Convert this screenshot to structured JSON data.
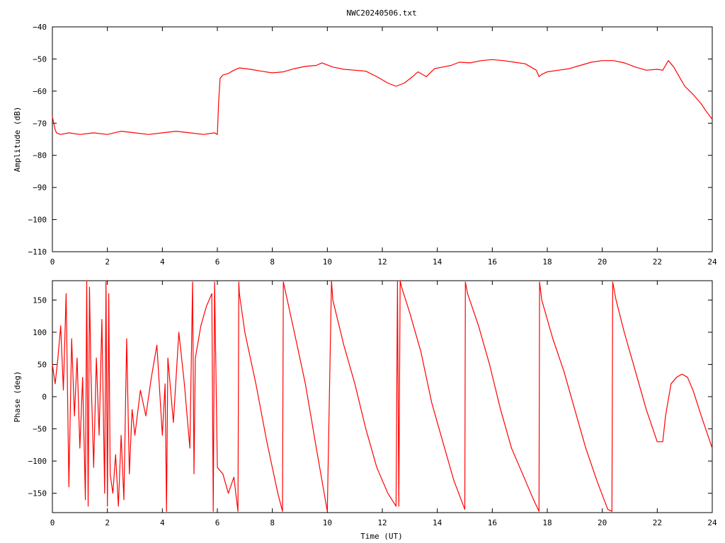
{
  "title": "NWC20240506.txt",
  "colors": {
    "series": "#ff0000",
    "axis": "#000000",
    "background": "#ffffff"
  },
  "chart_data": [
    {
      "type": "line",
      "id": "amplitude",
      "xlabel": "",
      "ylabel": "Amplitude (dB)",
      "xlim": [
        0,
        24
      ],
      "ylim": [
        -110,
        -40
      ],
      "xticks": [
        0,
        2,
        4,
        6,
        8,
        10,
        12,
        14,
        16,
        18,
        20,
        22,
        24
      ],
      "yticks": [
        -40,
        -50,
        -60,
        -70,
        -80,
        -90,
        -100,
        -110
      ],
      "grid": false,
      "legend": "none",
      "series": [
        {
          "x": [
            0,
            0.05,
            0.1,
            0.15,
            0.3,
            0.6,
            1,
            1.5,
            2,
            2.5,
            3,
            3.5,
            4,
            4.5,
            5,
            5.5,
            5.9,
            6.0,
            6.05,
            6.1,
            6.2,
            6.4,
            6.6,
            6.8,
            7.2,
            7.6,
            8.0,
            8.4,
            8.8,
            9.2,
            9.6,
            9.8,
            10.2,
            10.6,
            11.0,
            11.4,
            11.8,
            12.2,
            12.5,
            12.8,
            13.1,
            13.3,
            13.6,
            13.9,
            14.2,
            14.5,
            14.8,
            15.2,
            15.6,
            16.0,
            16.4,
            16.8,
            17.2,
            17.6,
            17.7,
            17.8,
            18.0,
            18.4,
            18.8,
            19.2,
            19.6,
            20.0,
            20.4,
            20.8,
            21.2,
            21.6,
            22.0,
            22.2,
            22.4,
            22.6,
            22.8,
            23.0,
            23.3,
            23.6,
            23.8,
            24.0
          ],
          "y": [
            -68,
            -70,
            -72,
            -73,
            -73.5,
            -73,
            -73.5,
            -73,
            -73.5,
            -72.5,
            -73,
            -73.5,
            -73,
            -72.5,
            -73,
            -73.5,
            -73,
            -73.5,
            -63,
            -56,
            -55,
            -54.5,
            -53.5,
            -52.8,
            -53.2,
            -53.8,
            -54.3,
            -54,
            -53,
            -52.3,
            -52,
            -51.2,
            -52.5,
            -53.2,
            -53.5,
            -53.8,
            -55.5,
            -57.5,
            -58.5,
            -57.5,
            -55.5,
            -54,
            -55.5,
            -53,
            -52.5,
            -52,
            -51,
            -51.2,
            -50.5,
            -50.2,
            -50.5,
            -51,
            -51.5,
            -53.5,
            -55.5,
            -54.8,
            -54,
            -53.5,
            -53,
            -52,
            -51,
            -50.5,
            -50.5,
            -51.2,
            -52.5,
            -53.5,
            -53.2,
            -53.5,
            -50.5,
            -52.5,
            -55.5,
            -58.5,
            -61,
            -64,
            -66.5,
            -68.8
          ]
        }
      ]
    },
    {
      "type": "line",
      "id": "phase",
      "xlabel": "Time (UT)",
      "ylabel": "Phase (deg)",
      "xlim": [
        0,
        24
      ],
      "ylim": [
        -180,
        180
      ],
      "xticks": [
        0,
        2,
        4,
        6,
        8,
        10,
        12,
        14,
        16,
        18,
        20,
        22,
        24
      ],
      "yticks": [
        -150,
        -100,
        -50,
        0,
        50,
        100,
        150
      ],
      "grid": false,
      "legend": "none",
      "series": [
        {
          "x": [
            0,
            0.1,
            0.2,
            0.3,
            0.4,
            0.5,
            0.6,
            0.7,
            0.8,
            0.9,
            1.0,
            1.1,
            1.2,
            1.25,
            1.3,
            1.35,
            1.4,
            1.5,
            1.6,
            1.7,
            1.8,
            1.9,
            1.95,
            2.0,
            2.05,
            2.1,
            2.2,
            2.3,
            2.4,
            2.5,
            2.6,
            2.7,
            2.8,
            2.9,
            3.0,
            3.2,
            3.4,
            3.6,
            3.8,
            4.0,
            4.1,
            4.15,
            4.2,
            4.4,
            4.6,
            4.8,
            5.0,
            5.1,
            5.15,
            5.2,
            5.4,
            5.6,
            5.8,
            5.85,
            5.9,
            6.0,
            6.2,
            6.4,
            6.6,
            6.75,
            6.78,
            6.8,
            7.0,
            7.4,
            7.8,
            8.2,
            8.37,
            8.4,
            8.8,
            9.2,
            9.6,
            10.0,
            10.15,
            10.2,
            10.6,
            11.0,
            11.4,
            11.8,
            12.2,
            12.5,
            12.55,
            12.6,
            12.65,
            12.7,
            13.0,
            13.4,
            13.8,
            14.2,
            14.6,
            15.0,
            15.02,
            15.1,
            15.5,
            15.9,
            16.3,
            16.7,
            17.1,
            17.5,
            17.7,
            17.72,
            17.8,
            18.2,
            18.6,
            19.0,
            19.4,
            19.8,
            20.2,
            20.35,
            20.38,
            20.5,
            20.8,
            21.2,
            21.6,
            22.0,
            22.2,
            22.3,
            22.5,
            22.7,
            22.9,
            23.1,
            23.3,
            23.6,
            24.0
          ],
          "y": [
            50,
            20,
            60,
            110,
            10,
            160,
            -140,
            90,
            -30,
            60,
            -80,
            30,
            -160,
            180,
            -170,
            170,
            40,
            -110,
            60,
            -60,
            120,
            -150,
            180,
            -170,
            160,
            -120,
            -150,
            -90,
            -170,
            -60,
            -160,
            90,
            -120,
            -20,
            -60,
            10,
            -30,
            30,
            80,
            -60,
            20,
            -178,
            60,
            -40,
            100,
            20,
            -80,
            178,
            -120,
            60,
            110,
            140,
            160,
            -178,
            178,
            -110,
            -120,
            -150,
            -125,
            -178,
            178,
            160,
            100,
            20,
            -70,
            -150,
            -178,
            178,
            100,
            20,
            -80,
            -178,
            180,
            150,
            80,
            20,
            -50,
            -110,
            -150,
            -170,
            180,
            -170,
            180,
            170,
            130,
            70,
            -10,
            -70,
            -130,
            -175,
            178,
            160,
            110,
            50,
            -20,
            -80,
            -120,
            -160,
            -178,
            178,
            150,
            90,
            40,
            -20,
            -80,
            -130,
            -175,
            -178,
            178,
            150,
            100,
            40,
            -20,
            -70,
            -70,
            -30,
            20,
            30,
            35,
            30,
            10,
            -30,
            -80
          ]
        }
      ]
    }
  ]
}
